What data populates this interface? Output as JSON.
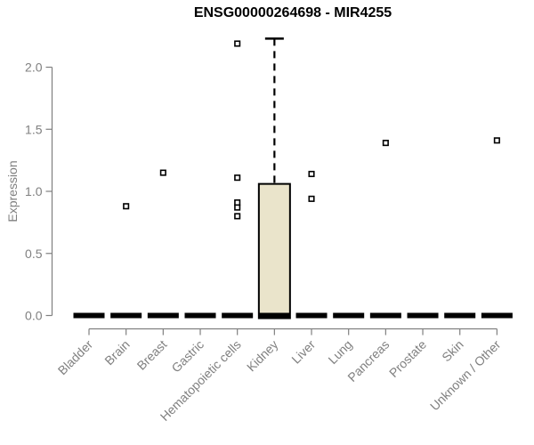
{
  "chart_data": {
    "type": "boxplot",
    "title": "ENSG00000264698 - MIR4255",
    "ylabel": "Expression",
    "xlabel": "",
    "y_ticks": [
      0.0,
      0.5,
      1.0,
      1.5,
      2.0
    ],
    "ylim": [
      0,
      2.3
    ],
    "grid": false,
    "legend": "none",
    "categories": [
      "Bladder",
      "Brain",
      "Breast",
      "Gastric",
      "Hematopoietic cells",
      "Kidney",
      "Liver",
      "Lung",
      "Pancreas",
      "Prostate",
      "Skin",
      "Unknown / Other"
    ],
    "boxes": [
      {
        "category": "Bladder",
        "median": 0,
        "q1": 0,
        "q3": 0,
        "whisker_low": 0,
        "whisker_high": 0,
        "outliers": []
      },
      {
        "category": "Brain",
        "median": 0,
        "q1": 0,
        "q3": 0,
        "whisker_low": 0,
        "whisker_high": 0,
        "outliers": [
          0.88
        ]
      },
      {
        "category": "Breast",
        "median": 0,
        "q1": 0,
        "q3": 0,
        "whisker_low": 0,
        "whisker_high": 0,
        "outliers": [
          1.15
        ]
      },
      {
        "category": "Gastric",
        "median": 0,
        "q1": 0,
        "q3": 0,
        "whisker_low": 0,
        "whisker_high": 0,
        "outliers": []
      },
      {
        "category": "Hematopoietic cells",
        "median": 0,
        "q1": 0,
        "q3": 0,
        "whisker_low": 0,
        "whisker_high": 0,
        "outliers": [
          2.19,
          1.11,
          0.91,
          0.87,
          0.8
        ]
      },
      {
        "category": "Kidney",
        "median": 0,
        "q1": 0,
        "q3": 1.06,
        "whisker_low": 0,
        "whisker_high": 2.23,
        "outliers": []
      },
      {
        "category": "Liver",
        "median": 0,
        "q1": 0,
        "q3": 0,
        "whisker_low": 0,
        "whisker_high": 0,
        "outliers": [
          1.14,
          0.94
        ]
      },
      {
        "category": "Lung",
        "median": 0,
        "q1": 0,
        "q3": 0,
        "whisker_low": 0,
        "whisker_high": 0,
        "outliers": []
      },
      {
        "category": "Pancreas",
        "median": 0,
        "q1": 0,
        "q3": 0,
        "whisker_low": 0,
        "whisker_high": 0,
        "outliers": [
          1.39
        ]
      },
      {
        "category": "Prostate",
        "median": 0,
        "q1": 0,
        "q3": 0,
        "whisker_low": 0,
        "whisker_high": 0,
        "outliers": []
      },
      {
        "category": "Skin",
        "median": 0,
        "q1": 0,
        "q3": 0,
        "whisker_low": 0,
        "whisker_high": 0,
        "outliers": []
      },
      {
        "category": "Unknown / Other",
        "median": 0,
        "q1": 0,
        "q3": 0,
        "whisker_low": 0,
        "whisker_high": 0,
        "outliers": [
          1.41
        ]
      }
    ],
    "colors": {
      "box_fill": "#EAE4CB",
      "box_border": "#000000",
      "median": "#000000",
      "whisker": "#000000",
      "outlier_fill": "#FFFFFF",
      "outlier_border": "#000000",
      "axis": "#808080",
      "tick_label": "#808080",
      "title": "#000000",
      "background": "#FFFFFF"
    }
  }
}
